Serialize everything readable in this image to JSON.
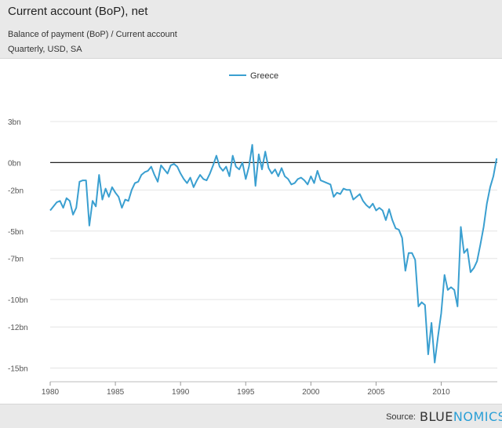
{
  "header": {
    "title": "Current account (BoP), net",
    "subtitle": "Balance of payment (BoP)  / Current account",
    "subtitle2": "Quarterly, USD, SA"
  },
  "footer": {
    "source_label": "Source:",
    "brand_part1": "BLUE",
    "brand_part2": "NOMICS"
  },
  "colors": {
    "series": "#3a9fd0",
    "grid": "#e4e4e4",
    "zero_line": "#222222"
  },
  "chart_data": {
    "type": "line",
    "title": "Current account (BoP), net",
    "xlim": [
      1980,
      2014.3
    ],
    "ylim": [
      -16,
      5
    ],
    "x_ticks": [
      1980,
      1985,
      1990,
      1995,
      2000,
      2005,
      2010
    ],
    "y_ticks": [
      3,
      0,
      -2,
      -5,
      -7,
      -10,
      -12,
      -15
    ],
    "y_tick_labels": [
      "3bn",
      "0bn",
      "-2bn",
      "-5bn",
      "-7bn",
      "-10bn",
      "-12bn",
      "-15bn"
    ],
    "legend": "top-center",
    "series": [
      {
        "name": "Greece",
        "points": [
          [
            1980.0,
            -3.5
          ],
          [
            1980.25,
            -3.2
          ],
          [
            1980.5,
            -2.9
          ],
          [
            1980.75,
            -2.8
          ],
          [
            1981.0,
            -3.3
          ],
          [
            1981.25,
            -2.6
          ],
          [
            1981.5,
            -2.8
          ],
          [
            1981.75,
            -3.8
          ],
          [
            1982.0,
            -3.3
          ],
          [
            1982.25,
            -1.4
          ],
          [
            1982.5,
            -1.3
          ],
          [
            1982.75,
            -1.3
          ],
          [
            1983.0,
            -4.6
          ],
          [
            1983.25,
            -2.8
          ],
          [
            1983.5,
            -3.2
          ],
          [
            1983.75,
            -0.9
          ],
          [
            1984.0,
            -2.7
          ],
          [
            1984.25,
            -1.9
          ],
          [
            1984.5,
            -2.5
          ],
          [
            1984.75,
            -1.8
          ],
          [
            1985.0,
            -2.2
          ],
          [
            1985.25,
            -2.5
          ],
          [
            1985.5,
            -3.3
          ],
          [
            1985.75,
            -2.7
          ],
          [
            1986.0,
            -2.8
          ],
          [
            1986.25,
            -2.0
          ],
          [
            1986.5,
            -1.5
          ],
          [
            1986.75,
            -1.4
          ],
          [
            1987.0,
            -0.9
          ],
          [
            1987.25,
            -0.7
          ],
          [
            1987.5,
            -0.6
          ],
          [
            1987.75,
            -0.3
          ],
          [
            1988.0,
            -0.9
          ],
          [
            1988.25,
            -1.4
          ],
          [
            1988.5,
            -0.2
          ],
          [
            1988.75,
            -0.5
          ],
          [
            1989.0,
            -0.8
          ],
          [
            1989.25,
            -0.2
          ],
          [
            1989.5,
            -0.1
          ],
          [
            1989.75,
            -0.3
          ],
          [
            1990.0,
            -0.8
          ],
          [
            1990.25,
            -1.2
          ],
          [
            1990.5,
            -1.5
          ],
          [
            1990.75,
            -1.1
          ],
          [
            1991.0,
            -1.8
          ],
          [
            1991.25,
            -1.3
          ],
          [
            1991.5,
            -0.9
          ],
          [
            1991.75,
            -1.2
          ],
          [
            1992.0,
            -1.3
          ],
          [
            1992.25,
            -0.8
          ],
          [
            1992.5,
            -0.2
          ],
          [
            1992.75,
            0.5
          ],
          [
            1993.0,
            -0.3
          ],
          [
            1993.25,
            -0.6
          ],
          [
            1993.5,
            -0.3
          ],
          [
            1993.75,
            -1.0
          ],
          [
            1994.0,
            0.5
          ],
          [
            1994.25,
            -0.3
          ],
          [
            1994.5,
            -0.5
          ],
          [
            1994.75,
            0.0
          ],
          [
            1995.0,
            -1.2
          ],
          [
            1995.25,
            -0.3
          ],
          [
            1995.5,
            1.3
          ],
          [
            1995.75,
            -1.7
          ],
          [
            1996.0,
            0.6
          ],
          [
            1996.25,
            -0.5
          ],
          [
            1996.5,
            0.8
          ],
          [
            1996.75,
            -0.4
          ],
          [
            1997.0,
            -0.8
          ],
          [
            1997.25,
            -0.5
          ],
          [
            1997.5,
            -1.0
          ],
          [
            1997.75,
            -0.4
          ],
          [
            1998.0,
            -1.0
          ],
          [
            1998.25,
            -1.2
          ],
          [
            1998.5,
            -1.6
          ],
          [
            1998.75,
            -1.5
          ],
          [
            1999.0,
            -1.2
          ],
          [
            1999.25,
            -1.1
          ],
          [
            1999.5,
            -1.3
          ],
          [
            1999.75,
            -1.6
          ],
          [
            2000.0,
            -1.0
          ],
          [
            2000.25,
            -1.5
          ],
          [
            2000.5,
            -0.6
          ],
          [
            2000.75,
            -1.3
          ],
          [
            2001.0,
            -1.4
          ],
          [
            2001.25,
            -1.5
          ],
          [
            2001.5,
            -1.6
          ],
          [
            2001.75,
            -2.5
          ],
          [
            2002.0,
            -2.2
          ],
          [
            2002.25,
            -2.3
          ],
          [
            2002.5,
            -1.9
          ],
          [
            2002.75,
            -2.0
          ],
          [
            2003.0,
            -2.0
          ],
          [
            2003.25,
            -2.7
          ],
          [
            2003.5,
            -2.5
          ],
          [
            2003.75,
            -2.3
          ],
          [
            2004.0,
            -2.8
          ],
          [
            2004.25,
            -3.1
          ],
          [
            2004.5,
            -3.3
          ],
          [
            2004.75,
            -3.0
          ],
          [
            2005.0,
            -3.5
          ],
          [
            2005.25,
            -3.3
          ],
          [
            2005.5,
            -3.5
          ],
          [
            2005.75,
            -4.2
          ],
          [
            2006.0,
            -3.4
          ],
          [
            2006.25,
            -4.2
          ],
          [
            2006.5,
            -4.8
          ],
          [
            2006.75,
            -4.9
          ],
          [
            2007.0,
            -5.5
          ],
          [
            2007.25,
            -7.9
          ],
          [
            2007.5,
            -6.6
          ],
          [
            2007.75,
            -6.6
          ],
          [
            2008.0,
            -7.1
          ],
          [
            2008.25,
            -10.5
          ],
          [
            2008.5,
            -10.2
          ],
          [
            2008.75,
            -10.4
          ],
          [
            2009.0,
            -14.0
          ],
          [
            2009.25,
            -11.7
          ],
          [
            2009.5,
            -14.6
          ],
          [
            2009.75,
            -12.7
          ],
          [
            2010.0,
            -11.0
          ],
          [
            2010.25,
            -8.2
          ],
          [
            2010.5,
            -9.3
          ],
          [
            2010.75,
            -9.1
          ],
          [
            2011.0,
            -9.3
          ],
          [
            2011.25,
            -10.5
          ],
          [
            2011.5,
            -4.7
          ],
          [
            2011.75,
            -6.6
          ],
          [
            2012.0,
            -6.3
          ],
          [
            2012.25,
            -8.0
          ],
          [
            2012.5,
            -7.7
          ],
          [
            2012.75,
            -7.2
          ],
          [
            2013.0,
            -6.0
          ],
          [
            2013.25,
            -4.7
          ],
          [
            2013.5,
            -3.0
          ],
          [
            2013.75,
            -1.8
          ],
          [
            2014.0,
            -1.0
          ],
          [
            2014.25,
            0.3
          ]
        ]
      }
    ]
  }
}
